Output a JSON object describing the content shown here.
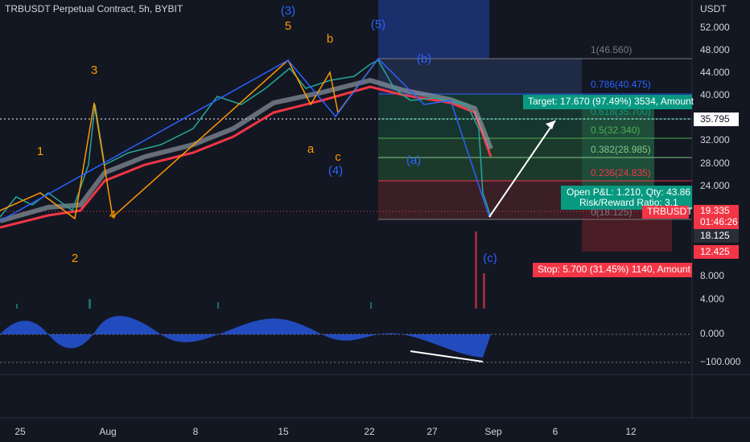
{
  "header": {
    "title": "TRBUSDT Perpetual Contract, 5h, BYBIT",
    "currency": "USDT"
  },
  "price_axis": [
    "52.000",
    "48.000",
    "44.000",
    "40.000",
    "32.000",
    "28.000",
    "24.000",
    "8.000",
    "4.000"
  ],
  "indicator_axis": [
    "0.000",
    "−100.000"
  ],
  "time_axis": [
    "25",
    "Aug",
    "8",
    "15",
    "22",
    "27",
    "Sep",
    "6",
    "12"
  ],
  "price_tags": {
    "current_line": "35.795",
    "last": "19.335",
    "countdown": "01:46:26",
    "symbol": "TRBUSDT",
    "low": "18.125",
    "stop": "12.425"
  },
  "waves": {
    "orange": [
      "1",
      "2",
      "3",
      "4",
      "5",
      "a",
      "b",
      "c"
    ],
    "blue": [
      "(3)",
      "(4)",
      "(5)",
      "(a)",
      "(b)",
      "(c)"
    ]
  },
  "fib": [
    "1(46.560)",
    "0.786(40.475)",
    "0.618(35.700)",
    "0.5(32.340)",
    "0.382(28.985)",
    "0.236(24.835)",
    "0(18.125)"
  ],
  "position": {
    "target": "Target: 17.670 (97.49%) 3534, Amount",
    "pnl": "Open P&L: 1.210, Qty: 43.86",
    "ratio": "Risk/Reward Ratio: 3.1",
    "stop": "Stop: 5.700 (31.45%) 1140, Amount"
  }
}
